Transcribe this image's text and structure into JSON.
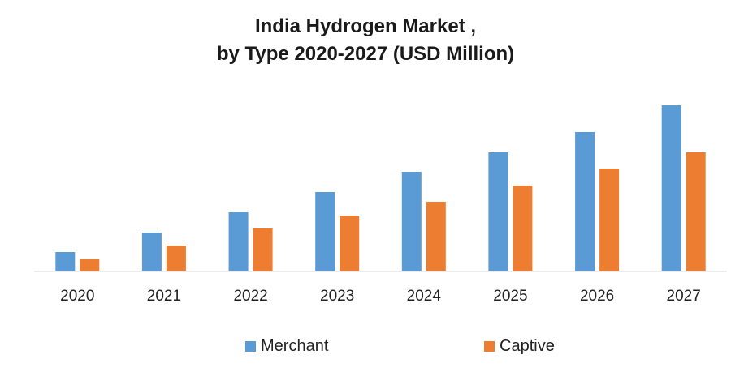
{
  "colors": {
    "merchant": "#5B9BD5",
    "captive": "#ED7D31",
    "axis": "#d9d9d9"
  },
  "chart_data": {
    "type": "bar",
    "title": "India Hydrogen Market ,",
    "subtitle": "by Type 2020-2027 (USD Million)",
    "xlabel": "",
    "ylabel": "",
    "grid": false,
    "legend_position": "bottom",
    "categories": [
      "2020",
      "2021",
      "2022",
      "2023",
      "2024",
      "2025",
      "2026",
      "2027"
    ],
    "ylim": [
      0,
      210
    ],
    "series": [
      {
        "name": "Merchant",
        "values": [
          24,
          48,
          73,
          98,
          123,
          147,
          172,
          205
        ]
      },
      {
        "name": "Captive",
        "values": [
          15,
          32,
          53,
          69,
          86,
          106,
          127,
          147
        ]
      }
    ]
  }
}
